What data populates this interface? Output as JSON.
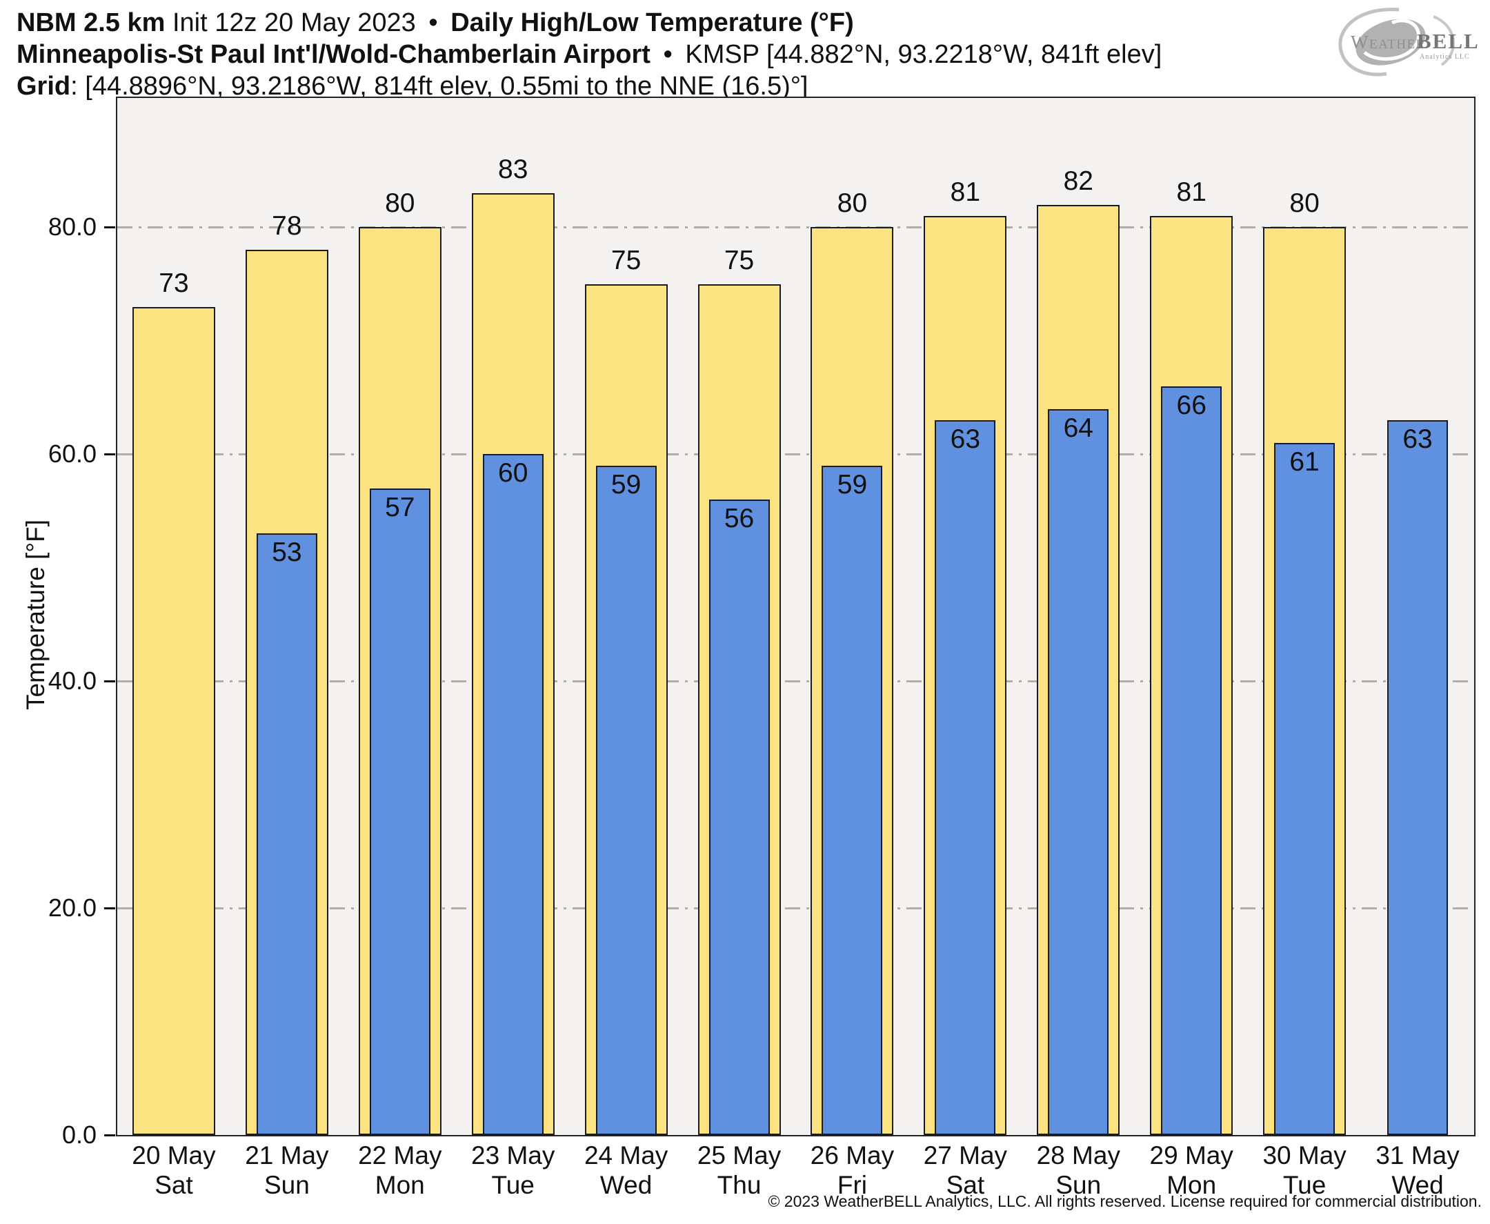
{
  "header": {
    "model": "NBM 2.5 km",
    "init": "Init 12z 20 May 2023",
    "separator": "•",
    "product": "Daily High/Low Temperature (°F)",
    "station": "Minneapolis-St Paul Int'l/Wold-Chamberlain Airport",
    "station_meta": "KMSP [44.882°N, 93.2218°W, 841ft elev]",
    "grid_label": "Grid",
    "grid_value": ": [44.8896°N, 93.2186°W, 814ft elev, 0.55mi to the NNE (16.5)°]"
  },
  "logo": {
    "name_part1": "Weather",
    "name_part2": "BELL",
    "subtitle": "Analytics LLC"
  },
  "footer": {
    "copyright": "© 2023 WeatherBELL Analytics, LLC. All rights reserved. License required for commercial distribution."
  },
  "colors": {
    "high_bar": "#FAE380",
    "low_bar": "#6090E0",
    "bar_outline": "#1a1a22",
    "plot_background": "#f3f2f0",
    "gridline": "#b0aeab"
  },
  "chart_data": {
    "type": "bar",
    "title": "Daily High/Low Temperature (°F)",
    "xlabel": "",
    "ylabel": "Temperature [°F]",
    "ylim": [
      0,
      91.4
    ],
    "yticks": [
      0,
      20,
      40,
      60,
      80
    ],
    "ytick_labels": [
      "0.0",
      "20.0",
      "40.0",
      "60.0",
      "80.0"
    ],
    "grid": {
      "horizontal": true,
      "style": "dash-dot",
      "at": [
        20,
        40,
        60,
        80
      ]
    },
    "legend": "none",
    "categories": [
      "20 May",
      "21 May",
      "22 May",
      "23 May",
      "24 May",
      "25 May",
      "26 May",
      "27 May",
      "28 May",
      "29 May",
      "30 May",
      "31 May"
    ],
    "weekdays": [
      "Sat",
      "Sun",
      "Mon",
      "Tue",
      "Wed",
      "Thu",
      "Fri",
      "Sat",
      "Sun",
      "Mon",
      "Tue",
      "Wed"
    ],
    "series": [
      {
        "name": "Daily High",
        "color": "#FAE380",
        "values": [
          73,
          78,
          80,
          83,
          75,
          75,
          80,
          81,
          82,
          81,
          80,
          null
        ]
      },
      {
        "name": "Daily Low",
        "color": "#6090E0",
        "values": [
          null,
          53,
          57,
          60,
          59,
          56,
          59,
          63,
          64,
          66,
          61,
          63
        ]
      }
    ]
  }
}
